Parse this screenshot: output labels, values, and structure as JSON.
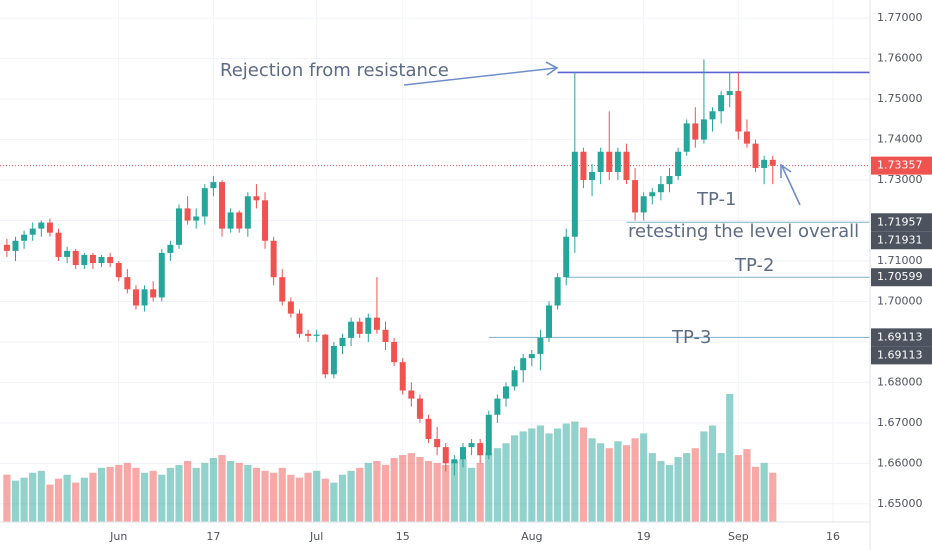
{
  "chart_data": {
    "type": "candlestick",
    "x": [
      0,
      1,
      2,
      3,
      4,
      5,
      6,
      7,
      8,
      9,
      10,
      11,
      12,
      13,
      14,
      15,
      16,
      17,
      18,
      19,
      20,
      21,
      22,
      23,
      24,
      25,
      26,
      27,
      28,
      29,
      30,
      31,
      32,
      33,
      34,
      35,
      36,
      37,
      38,
      39,
      40,
      41,
      42,
      43,
      44,
      45,
      46,
      47,
      48,
      49,
      50,
      51,
      52,
      53,
      54,
      55,
      56,
      57,
      58,
      59,
      60,
      61,
      62,
      63,
      64,
      65,
      66,
      67,
      68,
      69,
      70,
      71,
      72,
      73,
      74,
      75,
      76,
      77,
      78,
      79,
      80,
      81,
      82,
      83,
      84,
      85,
      86,
      87,
      88,
      89
    ],
    "open": [
      1.714,
      1.7125,
      1.715,
      1.7165,
      1.718,
      1.7195,
      1.717,
      1.711,
      1.7125,
      1.709,
      1.7115,
      1.7095,
      1.711,
      1.7095,
      1.706,
      1.703,
      1.699,
      1.703,
      1.701,
      1.712,
      1.714,
      1.723,
      1.72,
      1.721,
      1.728,
      1.7295,
      1.718,
      1.722,
      1.718,
      1.726,
      1.725,
      1.715,
      1.706,
      1.7,
      1.697,
      1.692,
      1.6915,
      1.6918,
      1.682,
      1.689,
      1.691,
      1.695,
      1.692,
      1.696,
      1.693,
      1.69,
      1.685,
      1.678,
      1.676,
      1.671,
      1.666,
      1.664,
      1.66,
      1.661,
      1.664,
      1.665,
      1.662,
      1.672,
      1.676,
      1.679,
      1.683,
      1.686,
      1.687,
      1.691,
      1.699,
      1.706,
      1.716,
      1.737,
      1.73,
      1.732,
      1.737,
      1.732,
      1.737,
      1.73,
      1.722,
      1.726,
      1.727,
      1.729,
      1.731,
      1.737,
      1.744,
      1.74,
      1.745,
      1.747,
      1.751,
      1.752,
      1.742,
      1.739,
      1.733,
      1.735
    ],
    "high": [
      1.7155,
      1.716,
      1.7175,
      1.7195,
      1.72,
      1.7205,
      1.718,
      1.7135,
      1.713,
      1.712,
      1.712,
      1.7115,
      1.712,
      1.71,
      1.708,
      1.704,
      1.704,
      1.705,
      1.713,
      1.715,
      1.724,
      1.726,
      1.723,
      1.729,
      1.731,
      1.73,
      1.723,
      1.7225,
      1.727,
      1.729,
      1.727,
      1.716,
      1.708,
      1.701,
      1.698,
      1.693,
      1.693,
      1.692,
      1.69,
      1.692,
      1.696,
      1.696,
      1.697,
      1.706,
      1.695,
      1.691,
      1.686,
      1.68,
      1.677,
      1.672,
      1.669,
      1.665,
      1.662,
      1.665,
      1.666,
      1.666,
      1.673,
      1.677,
      1.68,
      1.684,
      1.687,
      1.688,
      1.693,
      1.7,
      1.707,
      1.718,
      1.7566,
      1.738,
      1.734,
      1.738,
      1.747,
      1.738,
      1.739,
      1.733,
      1.727,
      1.728,
      1.731,
      1.733,
      1.738,
      1.745,
      1.748,
      1.7598,
      1.748,
      1.752,
      1.7566,
      1.7566,
      1.745,
      1.74,
      1.736,
      1.736
    ],
    "low": [
      1.711,
      1.71,
      1.713,
      1.715,
      1.716,
      1.716,
      1.71,
      1.7095,
      1.708,
      1.708,
      1.708,
      1.7085,
      1.7085,
      1.705,
      1.702,
      1.698,
      1.6975,
      1.7,
      1.7,
      1.71,
      1.713,
      1.719,
      1.718,
      1.719,
      1.726,
      1.716,
      1.717,
      1.717,
      1.716,
      1.723,
      1.713,
      1.704,
      1.699,
      1.696,
      1.691,
      1.69,
      1.69,
      1.681,
      1.681,
      1.687,
      1.689,
      1.691,
      1.69,
      1.692,
      1.688,
      1.684,
      1.677,
      1.674,
      1.67,
      1.665,
      1.662,
      1.658,
      1.657,
      1.659,
      1.662,
      1.66,
      1.661,
      1.67,
      1.674,
      1.678,
      1.68,
      1.684,
      1.683,
      1.69,
      1.698,
      1.704,
      1.712,
      1.728,
      1.726,
      1.729,
      1.73,
      1.73,
      1.729,
      1.72,
      1.72,
      1.724,
      1.725,
      1.727,
      1.73,
      1.736,
      1.738,
      1.739,
      1.742,
      1.744,
      1.748,
      1.74,
      1.738,
      1.732,
      1.729,
      1.729
    ],
    "close": [
      1.7125,
      1.715,
      1.7165,
      1.718,
      1.7195,
      1.717,
      1.711,
      1.7125,
      1.709,
      1.7115,
      1.7095,
      1.711,
      1.7095,
      1.706,
      1.703,
      1.699,
      1.703,
      1.701,
      1.712,
      1.714,
      1.723,
      1.72,
      1.721,
      1.728,
      1.7295,
      1.718,
      1.722,
      1.718,
      1.726,
      1.725,
      1.715,
      1.706,
      1.7,
      1.697,
      1.692,
      1.6915,
      1.6918,
      1.682,
      1.689,
      1.691,
      1.695,
      1.692,
      1.696,
      1.693,
      1.69,
      1.685,
      1.678,
      1.676,
      1.671,
      1.666,
      1.664,
      1.66,
      1.661,
      1.664,
      1.665,
      1.662,
      1.672,
      1.676,
      1.679,
      1.683,
      1.686,
      1.687,
      1.691,
      1.699,
      1.706,
      1.716,
      1.737,
      1.73,
      1.732,
      1.737,
      1.732,
      1.737,
      1.73,
      1.722,
      1.726,
      1.727,
      1.729,
      1.731,
      1.737,
      1.744,
      1.74,
      1.745,
      1.747,
      1.751,
      1.752,
      1.742,
      1.739,
      1.733,
      1.735,
      1.73357
    ],
    "volume": [
      48,
      42,
      45,
      50,
      52,
      38,
      44,
      48,
      40,
      45,
      50,
      55,
      56,
      58,
      60,
      55,
      50,
      52,
      48,
      55,
      58,
      62,
      55,
      60,
      65,
      68,
      62,
      60,
      58,
      55,
      52,
      50,
      55,
      48,
      45,
      50,
      52,
      44,
      40,
      48,
      52,
      55,
      60,
      62,
      58,
      65,
      68,
      70,
      66,
      62,
      60,
      58,
      62,
      64,
      55,
      60,
      70,
      75,
      80,
      88,
      92,
      95,
      98,
      90,
      95,
      100,
      102,
      96,
      85,
      80,
      75,
      82,
      78,
      85,
      90,
      70,
      62,
      58,
      66,
      70,
      75,
      92,
      98,
      70,
      130,
      68,
      74,
      56,
      60,
      50
    ],
    "up_color": "#26a69a",
    "down_color": "#ef5350",
    "xlim": [
      -0.8,
      100.3
    ],
    "ylim": [
      1.6455,
      1.7745
    ],
    "xticks": [
      {
        "value": 13,
        "label": "Jun"
      },
      {
        "value": 24,
        "label": "17"
      },
      {
        "value": 36,
        "label": "Jul"
      },
      {
        "value": 46,
        "label": "15"
      },
      {
        "value": 61,
        "label": "Aug"
      },
      {
        "value": 74,
        "label": "19"
      },
      {
        "value": 85,
        "label": "Sep"
      },
      {
        "value": 96,
        "label": "16"
      }
    ],
    "yticks": [
      {
        "value": 1.77,
        "label": "1.77000"
      },
      {
        "value": 1.76,
        "label": "1.76000"
      },
      {
        "value": 1.75,
        "label": "1.75000"
      },
      {
        "value": 1.74,
        "label": "1.74000"
      },
      {
        "value": 1.73,
        "label": "1.73000"
      },
      {
        "value": 1.72,
        "label": "1.72000"
      },
      {
        "value": 1.71,
        "label": "1.71000"
      },
      {
        "value": 1.7,
        "label": "1.70000"
      },
      {
        "value": 1.69,
        "label": "1.69000"
      },
      {
        "value": 1.68,
        "label": "1.68000"
      },
      {
        "value": 1.67,
        "label": "1.67000"
      },
      {
        "value": 1.66,
        "label": "1.66000"
      },
      {
        "value": 1.65,
        "label": "1.65000"
      }
    ],
    "grid": true,
    "price_tags": [
      {
        "value": 1.73357,
        "color": "#ef5350"
      },
      {
        "value": 1.71957,
        "color": "#4c525e"
      },
      {
        "value": 1.71931,
        "color": "#4c525e"
      },
      {
        "value": 1.70599,
        "color": "#4c525e"
      },
      {
        "value": 1.69113,
        "color": "#4c525e"
      },
      {
        "value": 1.69113,
        "color": "#4c525e"
      }
    ],
    "levels": [
      {
        "value": 1.7566,
        "x0": 64,
        "color": "#5b63d3"
      },
      {
        "name": "TP-1",
        "value": 1.71957,
        "x0": 72,
        "color": "#7fb0cc"
      },
      {
        "name": "TP-2",
        "value": 1.70599,
        "x0": 65,
        "color": "#7fb0cc"
      },
      {
        "name": "TP-3",
        "value": 1.69113,
        "x0": 56,
        "color": "#7fb0cc"
      }
    ],
    "annotations": [
      "Rejection from resistance",
      "retesting the level overall"
    ]
  }
}
